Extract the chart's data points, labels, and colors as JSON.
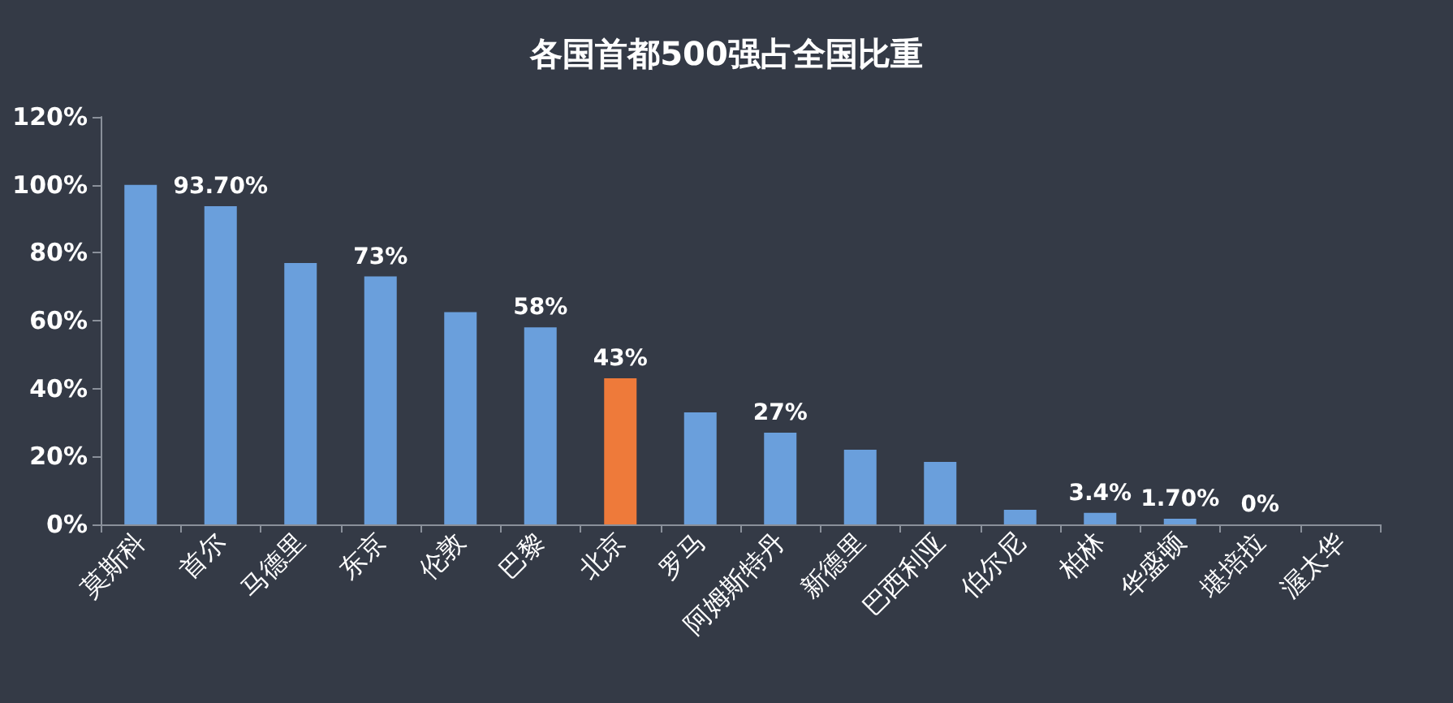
{
  "chart_data": {
    "type": "bar",
    "title": "各国首都500强占全国比重",
    "categories": [
      "莫斯科",
      "首尔",
      "马德里",
      "东京",
      "伦敦",
      "巴黎",
      "北京",
      "罗马",
      "阿姆斯特丹",
      "新德里",
      "巴西利亚",
      "伯尔尼",
      "柏林",
      "华盛顿",
      "堪培拉",
      "渥太华"
    ],
    "values": [
      100,
      93.7,
      77,
      73,
      62.5,
      58,
      43,
      33,
      27,
      22,
      18.4,
      4.3,
      3.4,
      1.7,
      0,
      0
    ],
    "value_labels": [
      null,
      "93.70%",
      null,
      "73%",
      null,
      "58%",
      "43%",
      null,
      "27%",
      null,
      null,
      null,
      "3.4%",
      "1.70%",
      "0%",
      null
    ],
    "colors": [
      "#6a9fdc",
      "#6a9fdc",
      "#6a9fdc",
      "#6a9fdc",
      "#6a9fdc",
      "#6a9fdc",
      "#ee7a3a",
      "#6a9fdc",
      "#6a9fdc",
      "#6a9fdc",
      "#6a9fdc",
      "#6a9fdc",
      "#6a9fdc",
      "#6a9fdc",
      "#6a9fdc",
      "#6a9fdc"
    ],
    "ylim": [
      0,
      120
    ],
    "yticks": [
      {
        "value": 0,
        "label": "0%"
      },
      {
        "value": 20,
        "label": "20%"
      },
      {
        "value": 40,
        "label": "40%"
      },
      {
        "value": 60,
        "label": "60%"
      },
      {
        "value": 80,
        "label": "80%"
      },
      {
        "value": 100,
        "label": "100%"
      },
      {
        "value": 120,
        "label": "120%"
      }
    ],
    "grid": false
  }
}
